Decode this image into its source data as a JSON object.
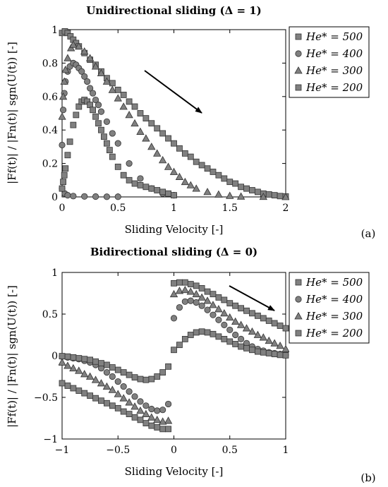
{
  "chart_data": [
    {
      "type": "scatter",
      "title": "Unidirectional sliding (Δ = 1)",
      "xlabel": "Sliding Velocity [-]",
      "ylabel": "|Ff(t)| / |Fn(t)| sgn(U(t)) [-]",
      "xlim": [
        0,
        2
      ],
      "ylim": [
        0,
        1
      ],
      "xticks": [
        "0",
        "0.5",
        "1",
        "1.5",
        "2"
      ],
      "yticks": [
        "0",
        "0.2",
        "0.4",
        "0.6",
        "0.8",
        "1"
      ],
      "panel_label": "(a)",
      "legend_position": "outside-right",
      "grid": false,
      "series": [
        {
          "name": "He* = 500",
          "marker": "square",
          "color": "#808080",
          "x": [
            0.0,
            0.025,
            0.05,
            0.075,
            0.1,
            0.125,
            0.15,
            0.2,
            0.25,
            0.3,
            0.35,
            0.4,
            0.45,
            0.5,
            0.55,
            0.6,
            0.65,
            0.7,
            0.75,
            0.8,
            0.85,
            0.9,
            0.95,
            1.0,
            1.05,
            1.1,
            1.15,
            1.2,
            1.25,
            1.3,
            1.35,
            1.4,
            1.45,
            1.5,
            1.55,
            1.6,
            1.65,
            1.7,
            1.75,
            1.8,
            1.85,
            1.9,
            1.95,
            2.0
          ],
          "y": [
            0.98,
            0.99,
            0.98,
            0.96,
            0.94,
            0.92,
            0.9,
            0.86,
            0.82,
            0.79,
            0.75,
            0.71,
            0.68,
            0.64,
            0.61,
            0.57,
            0.54,
            0.5,
            0.47,
            0.44,
            0.41,
            0.38,
            0.35,
            0.32,
            0.29,
            0.26,
            0.24,
            0.21,
            0.19,
            0.17,
            0.15,
            0.13,
            0.11,
            0.09,
            0.08,
            0.06,
            0.05,
            0.04,
            0.03,
            0.02,
            0.015,
            0.01,
            0.005,
            0.003
          ]
        },
        {
          "name": "He* = 400",
          "marker": "circle",
          "color": "#808080",
          "x": [
            0.0,
            0.01,
            0.02,
            0.03,
            0.05,
            0.07,
            0.1,
            0.125,
            0.15,
            0.175,
            0.2,
            0.225,
            0.25,
            0.275,
            0.3,
            0.325,
            0.35,
            0.4,
            0.45,
            0.5,
            0.6,
            0.7,
            0.8,
            0.9,
            1.0,
            0.0,
            0.025,
            0.05,
            0.1,
            0.2,
            0.3,
            0.4,
            0.5
          ],
          "y": [
            0.31,
            0.52,
            0.62,
            0.69,
            0.75,
            0.78,
            0.8,
            0.79,
            0.77,
            0.75,
            0.72,
            0.69,
            0.65,
            0.62,
            0.58,
            0.55,
            0.51,
            0.45,
            0.38,
            0.32,
            0.2,
            0.11,
            0.05,
            0.02,
            0.01,
            0.05,
            0.02,
            0.01,
            0.005,
            0.003,
            0.002,
            0.001,
            0.001
          ]
        },
        {
          "name": "He* = 300",
          "marker": "triangle",
          "color": "#808080",
          "x": [
            0.0,
            0.01,
            0.02,
            0.03,
            0.05,
            0.08,
            0.1,
            0.15,
            0.2,
            0.25,
            0.3,
            0.35,
            0.4,
            0.45,
            0.5,
            0.55,
            0.6,
            0.65,
            0.7,
            0.75,
            0.8,
            0.85,
            0.9,
            0.95,
            1.0,
            1.05,
            1.1,
            1.15,
            1.2,
            1.3,
            1.4,
            1.5,
            1.6,
            1.8,
            2.0
          ],
          "y": [
            0.48,
            0.6,
            0.69,
            0.76,
            0.83,
            0.89,
            0.91,
            0.9,
            0.87,
            0.83,
            0.78,
            0.74,
            0.69,
            0.64,
            0.59,
            0.54,
            0.49,
            0.44,
            0.39,
            0.35,
            0.3,
            0.26,
            0.22,
            0.18,
            0.15,
            0.12,
            0.09,
            0.07,
            0.05,
            0.03,
            0.015,
            0.007,
            0.003,
            0.001,
            0.0
          ]
        },
        {
          "name": "He* = 200",
          "marker": "square",
          "color": "#808080",
          "x": [
            0.0,
            0.01,
            0.02,
            0.03,
            0.05,
            0.07,
            0.1,
            0.125,
            0.15,
            0.175,
            0.2,
            0.225,
            0.25,
            0.275,
            0.3,
            0.325,
            0.35,
            0.375,
            0.4,
            0.425,
            0.45,
            0.5,
            0.55,
            0.6,
            0.65,
            0.7,
            0.75,
            0.8,
            0.85,
            0.9,
            0.95,
            1.0
          ],
          "y": [
            0.05,
            0.09,
            0.13,
            0.17,
            0.25,
            0.33,
            0.43,
            0.49,
            0.54,
            0.57,
            0.58,
            0.57,
            0.55,
            0.52,
            0.48,
            0.44,
            0.4,
            0.36,
            0.32,
            0.28,
            0.24,
            0.18,
            0.13,
            0.1,
            0.08,
            0.07,
            0.06,
            0.05,
            0.04,
            0.03,
            0.02,
            0.01
          ]
        }
      ]
    },
    {
      "type": "scatter",
      "title": "Bidirectional sliding (Δ = 0)",
      "xlabel": "Sliding Velocity [-]",
      "ylabel": "|Ff(t)| / |Fn(t)| sgn(U(t)) [-]",
      "xlim": [
        -1,
        1
      ],
      "ylim": [
        -1,
        1
      ],
      "xticks": [
        "−1",
        "−0.5",
        "0",
        "0.5",
        "1"
      ],
      "yticks": [
        "−1",
        "−0.5",
        "0",
        "0.5",
        "1"
      ],
      "panel_label": "(b)",
      "legend_position": "outside-right",
      "grid": false,
      "series": [
        {
          "name": "He* = 500",
          "marker": "square",
          "color": "#808080",
          "x": [
            0.0,
            0.05,
            0.1,
            0.15,
            0.2,
            0.25,
            0.3,
            0.35,
            0.4,
            0.45,
            0.5,
            0.55,
            0.6,
            0.65,
            0.7,
            0.75,
            0.8,
            0.85,
            0.9,
            0.95,
            1.0,
            -0.05,
            -0.1,
            -0.15,
            -0.2,
            -0.25,
            -0.3,
            -0.35,
            -0.4,
            -0.45,
            -0.5,
            -0.55,
            -0.6,
            -0.65,
            -0.7,
            -0.75,
            -0.8,
            -0.85,
            -0.9,
            -0.95,
            -1.0
          ],
          "y": [
            0.87,
            0.88,
            0.88,
            0.86,
            0.84,
            0.81,
            0.77,
            0.74,
            0.7,
            0.67,
            0.63,
            0.6,
            0.57,
            0.54,
            0.51,
            0.48,
            0.45,
            0.42,
            0.39,
            0.36,
            0.33,
            -0.88,
            -0.88,
            -0.86,
            -0.84,
            -0.81,
            -0.77,
            -0.74,
            -0.7,
            -0.67,
            -0.63,
            -0.6,
            -0.57,
            -0.54,
            -0.51,
            -0.48,
            -0.45,
            -0.42,
            -0.39,
            -0.36,
            -0.33
          ]
        },
        {
          "name": "He* = 400",
          "marker": "circle",
          "color": "#808080",
          "x": [
            0.0,
            0.05,
            0.1,
            0.15,
            0.2,
            0.25,
            0.3,
            0.35,
            0.4,
            0.45,
            0.5,
            0.55,
            0.6,
            0.65,
            0.7,
            0.75,
            0.8,
            0.85,
            0.9,
            0.95,
            1.0,
            -0.05,
            -0.1,
            -0.15,
            -0.2,
            -0.25,
            -0.3,
            -0.35,
            -0.4,
            -0.45,
            -0.5,
            -0.55,
            -0.6,
            -0.65,
            -0.7,
            -0.75,
            -0.8,
            -0.85,
            -0.9,
            -0.95,
            -1.0
          ],
          "y": [
            0.45,
            0.58,
            0.65,
            0.66,
            0.64,
            0.6,
            0.55,
            0.49,
            0.43,
            0.37,
            0.31,
            0.25,
            0.2,
            0.15,
            0.11,
            0.08,
            0.06,
            0.04,
            0.03,
            0.02,
            0.01,
            -0.58,
            -0.65,
            -0.66,
            -0.64,
            -0.6,
            -0.55,
            -0.49,
            -0.43,
            -0.37,
            -0.31,
            -0.25,
            -0.2,
            -0.15,
            -0.11,
            -0.08,
            -0.06,
            -0.04,
            -0.03,
            -0.02,
            -0.01
          ]
        },
        {
          "name": "He* = 300",
          "marker": "triangle",
          "color": "#808080",
          "x": [
            0.0,
            0.05,
            0.1,
            0.15,
            0.2,
            0.25,
            0.3,
            0.35,
            0.4,
            0.45,
            0.5,
            0.55,
            0.6,
            0.65,
            0.7,
            0.75,
            0.8,
            0.85,
            0.9,
            0.95,
            1.0,
            -0.05,
            -0.1,
            -0.15,
            -0.2,
            -0.25,
            -0.3,
            -0.35,
            -0.4,
            -0.45,
            -0.5,
            -0.55,
            -0.6,
            -0.65,
            -0.7,
            -0.75,
            -0.8,
            -0.85,
            -0.9,
            -0.95,
            -1.0
          ],
          "y": [
            0.74,
            0.78,
            0.79,
            0.77,
            0.74,
            0.7,
            0.66,
            0.61,
            0.56,
            0.51,
            0.46,
            0.41,
            0.37,
            0.33,
            0.29,
            0.25,
            0.22,
            0.18,
            0.15,
            0.12,
            0.08,
            -0.78,
            -0.79,
            -0.77,
            -0.74,
            -0.7,
            -0.66,
            -0.61,
            -0.56,
            -0.51,
            -0.46,
            -0.41,
            -0.37,
            -0.33,
            -0.29,
            -0.25,
            -0.22,
            -0.18,
            -0.15,
            -0.12,
            -0.08
          ]
        },
        {
          "name": "He* = 200",
          "marker": "square",
          "color": "#808080",
          "x": [
            0.0,
            0.05,
            0.1,
            0.15,
            0.2,
            0.25,
            0.3,
            0.35,
            0.4,
            0.45,
            0.5,
            0.55,
            0.6,
            0.65,
            0.7,
            0.75,
            0.8,
            0.85,
            0.9,
            0.95,
            1.0,
            -0.05,
            -0.1,
            -0.15,
            -0.2,
            -0.25,
            -0.3,
            -0.35,
            -0.4,
            -0.45,
            -0.5,
            -0.55,
            -0.6,
            -0.65,
            -0.7,
            -0.75,
            -0.8,
            -0.85,
            -0.9,
            -0.95,
            -1.0
          ],
          "y": [
            0.07,
            0.13,
            0.2,
            0.25,
            0.28,
            0.29,
            0.28,
            0.26,
            0.23,
            0.2,
            0.17,
            0.14,
            0.11,
            0.09,
            0.07,
            0.05,
            0.04,
            0.03,
            0.02,
            0.01,
            0.005,
            -0.13,
            -0.2,
            -0.25,
            -0.28,
            -0.29,
            -0.28,
            -0.26,
            -0.23,
            -0.2,
            -0.17,
            -0.14,
            -0.11,
            -0.09,
            -0.07,
            -0.05,
            -0.04,
            -0.03,
            -0.02,
            -0.01,
            -0.005
          ]
        }
      ]
    }
  ]
}
